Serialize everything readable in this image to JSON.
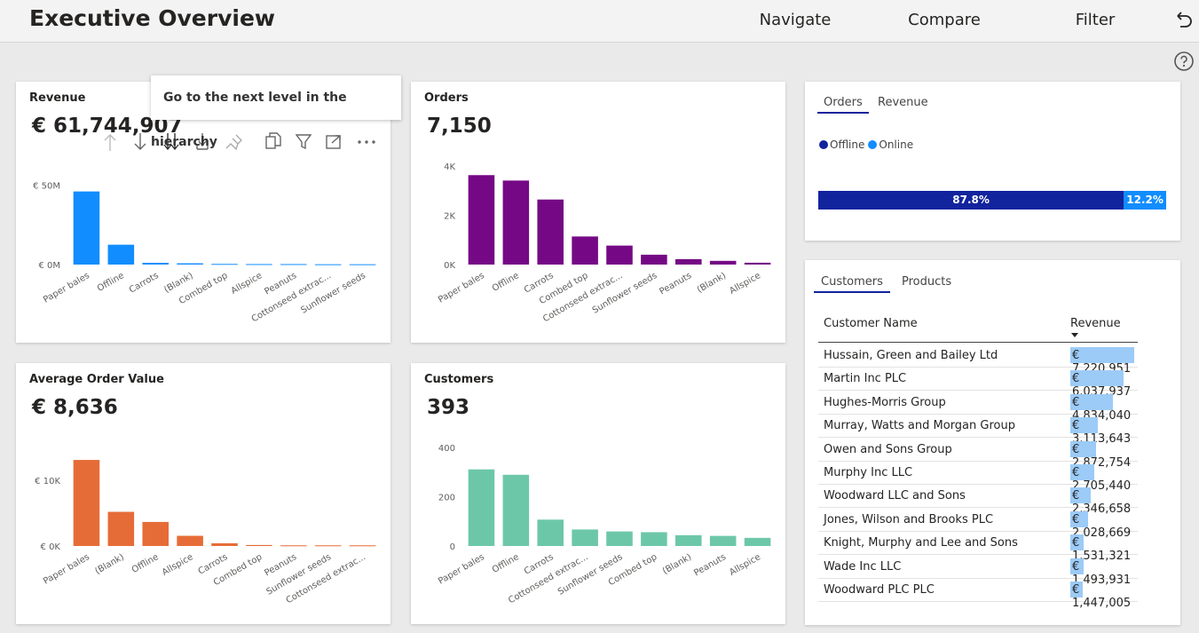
{
  "header": {
    "title": "Executive Overview",
    "nav": [
      "Navigate",
      "Compare",
      "Filter"
    ]
  },
  "tooltip": "Go to the next level in the hierarchy",
  "chart_data": [
    {
      "type": "bar",
      "title": "Revenue",
      "kpi": "€ 61,744,907",
      "categories": [
        "Paper bales",
        "Offline",
        "Carrots",
        "(Blank)",
        "Combed top",
        "Allspice",
        "Peanuts",
        "Cottonseed extrac...",
        "Sunflower seeds"
      ],
      "values": [
        46000000,
        12500000,
        1100000,
        800000,
        400000,
        300000,
        300000,
        200000,
        200000
      ],
      "ylim": [
        0,
        62000000
      ],
      "yticks": [
        {
          "value": 0,
          "label": "€ 0M"
        },
        {
          "value": 50000000,
          "label": "€ 50M"
        }
      ],
      "color": "#118dff"
    },
    {
      "type": "bar",
      "title": "Orders",
      "kpi": "7,150",
      "categories": [
        "Paper bales",
        "Offline",
        "Carrots",
        "Combed top",
        "Cottonseed extrac...",
        "Sunflower seeds",
        "Peanuts",
        "(Blank)",
        "Allspice"
      ],
      "values": [
        3630,
        3410,
        2640,
        1140,
        770,
        400,
        220,
        150,
        75
      ],
      "ylim": [
        0,
        4000
      ],
      "yticks": [
        {
          "value": 0,
          "label": "0K"
        },
        {
          "value": 2000,
          "label": "2K"
        },
        {
          "value": 4000,
          "label": "4K"
        }
      ],
      "color": "#750985"
    },
    {
      "type": "bar",
      "title": "Average Order Value",
      "kpi": "€ 8,636",
      "categories": [
        "Paper bales",
        "(Blank)",
        "Offline",
        "Allspice",
        "Carrots",
        "Combed top",
        "Peanuts",
        "Sunflower seeds",
        "Cottonseed extrac..."
      ],
      "values": [
        13100,
        5200,
        3660,
        1550,
        420,
        150,
        100,
        100,
        100
      ],
      "ylim": [
        0,
        15000
      ],
      "yticks": [
        {
          "value": 0,
          "label": "€ 0K"
        },
        {
          "value": 10000,
          "label": "€ 10K"
        }
      ],
      "color": "#e66c37"
    },
    {
      "type": "bar",
      "title": "Customers",
      "kpi": "393",
      "categories": [
        "Paper bales",
        "Offline",
        "Carrots",
        "Cottonseed extrac...",
        "Sunflower seeds",
        "Combed top",
        "(Blank)",
        "Peanuts",
        "Allspice"
      ],
      "values": [
        311,
        289,
        107,
        67,
        59,
        56,
        44,
        41,
        33
      ],
      "ylim": [
        0,
        400
      ],
      "yticks": [
        0,
        200,
        400
      ],
      "color": "#6cc7a8"
    }
  ],
  "split": {
    "tabs": [
      "Orders",
      "Revenue"
    ],
    "series": [
      {
        "name": "Offline",
        "color": "#12239e",
        "value": 87.8,
        "value_label": "87.8%"
      },
      {
        "name": "Online",
        "color": "#118dff",
        "value": 12.2,
        "value_label": "12.2%"
      }
    ]
  },
  "table": {
    "tabs": [
      "Customers",
      "Products"
    ],
    "columns": [
      "Customer Name",
      "Revenue"
    ],
    "rows": [
      {
        "name": "Hussain, Green and Bailey Ltd",
        "revenue": 7220951,
        "revenue_label": "€ 7,220,951"
      },
      {
        "name": "Martin Inc PLC",
        "revenue": 6037937,
        "revenue_label": "€ 6,037,937"
      },
      {
        "name": "Hughes-Morris Group",
        "revenue": 4834040,
        "revenue_label": "€ 4,834,040"
      },
      {
        "name": "Murray, Watts and Morgan Group",
        "revenue": 3113643,
        "revenue_label": "€ 3,113,643"
      },
      {
        "name": "Owen and Sons Group",
        "revenue": 2872754,
        "revenue_label": "€ 2,872,754"
      },
      {
        "name": "Murphy Inc LLC",
        "revenue": 2705440,
        "revenue_label": "€ 2,705,440"
      },
      {
        "name": "Woodward LLC and Sons",
        "revenue": 2346658,
        "revenue_label": "€ 2,346,658"
      },
      {
        "name": "Jones, Wilson and Brooks PLC",
        "revenue": 2028669,
        "revenue_label": "€ 2,028,669"
      },
      {
        "name": "Knight, Murphy and Lee and Sons",
        "revenue": 1531321,
        "revenue_label": "€ 1,531,321"
      },
      {
        "name": "Wade Inc LLC",
        "revenue": 1493931,
        "revenue_label": "€ 1,493,931"
      },
      {
        "name": "Woodward PLC PLC",
        "revenue": 1447005,
        "revenue_label": "€ 1,447,005"
      }
    ]
  }
}
